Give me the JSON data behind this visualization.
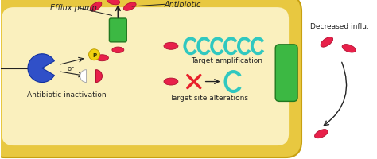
{
  "bg_color": "#ffffff",
  "cell_outer_color": "#E8C840",
  "cell_inner_color": "#FAF0BE",
  "cell_border_color": "#E8C840",
  "green_pump_color": "#3CB843",
  "antibiotic_color": "#E8204A",
  "antibiotic_ec": "#B01030",
  "teal_color": "#30C8C0",
  "blue_color": "#3050C8",
  "yellow_p_color": "#F0D010",
  "red_x_color": "#E8202A",
  "text_color": "#222222",
  "arrow_color": "#222222",
  "label_efflux": "Efflux pump",
  "label_antibiotic": "Antibiotic",
  "label_inactivation": "Antibiotic inactivation",
  "label_amplification": "Target amplification",
  "label_alterations": "Target site alterations",
  "label_decreased": "Decreased influ.",
  "label_or": "or",
  "figw": 4.74,
  "figh": 2.01,
  "dpi": 100
}
